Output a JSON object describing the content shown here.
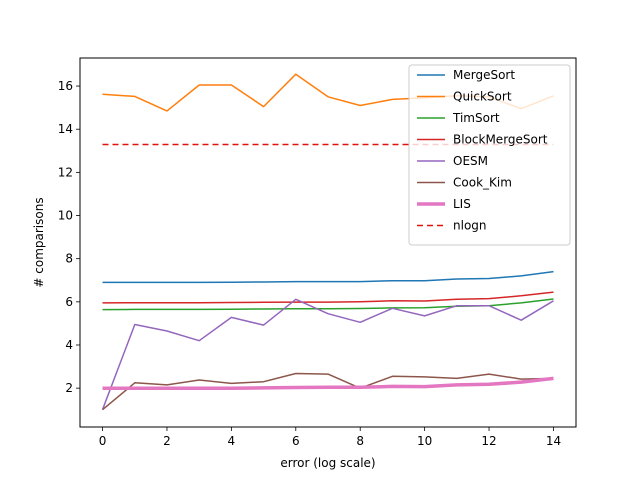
{
  "chart_data": {
    "type": "line",
    "xlabel": "error (log scale)",
    "ylabel": "# comparisons",
    "xlim": [
      -0.7,
      14.7
    ],
    "ylim": [
      0.2,
      17.3
    ],
    "xticks": [
      0,
      2,
      4,
      6,
      8,
      10,
      12,
      14
    ],
    "yticks": [
      2,
      4,
      6,
      8,
      10,
      12,
      14,
      16
    ],
    "grid": false,
    "legend_position": "top-right",
    "x": [
      0,
      1,
      2,
      3,
      4,
      5,
      6,
      7,
      8,
      9,
      10,
      11,
      12,
      13,
      14
    ],
    "series": [
      {
        "name": "MergeSort",
        "color": "#1f77b4",
        "style": "solid",
        "width": 1.5,
        "values": [
          6.9,
          6.9,
          6.9,
          6.9,
          6.91,
          6.92,
          6.94,
          6.94,
          6.94,
          6.98,
          6.98,
          7.06,
          7.08,
          7.2,
          7.4
        ]
      },
      {
        "name": "QuickSort",
        "color": "#ff7f0e",
        "style": "solid",
        "width": 1.5,
        "values": [
          15.62,
          15.52,
          14.85,
          16.05,
          16.05,
          15.05,
          16.55,
          15.5,
          15.1,
          15.38,
          15.45,
          15.55,
          15.5,
          14.95,
          15.55
        ]
      },
      {
        "name": "TimSort",
        "color": "#2ca02c",
        "style": "solid",
        "width": 1.5,
        "values": [
          5.64,
          5.65,
          5.65,
          5.65,
          5.66,
          5.67,
          5.68,
          5.68,
          5.69,
          5.72,
          5.73,
          5.8,
          5.82,
          5.95,
          6.13
        ]
      },
      {
        "name": "BlockMergeSort",
        "color": "#d62728",
        "style": "solid",
        "width": 1.5,
        "values": [
          5.95,
          5.96,
          5.96,
          5.96,
          5.97,
          5.98,
          5.99,
          5.99,
          6.0,
          6.05,
          6.04,
          6.12,
          6.15,
          6.28,
          6.45
        ]
      },
      {
        "name": "OESM",
        "color": "#9467bd",
        "style": "solid",
        "width": 1.5,
        "values": [
          1.0,
          4.95,
          4.65,
          4.2,
          5.28,
          4.92,
          6.12,
          5.45,
          5.05,
          5.7,
          5.35,
          5.82,
          5.82,
          5.15,
          6.05
        ]
      },
      {
        "name": "Cook_Kim",
        "color": "#8c564b",
        "style": "solid",
        "width": 1.5,
        "values": [
          1.0,
          2.25,
          2.15,
          2.38,
          2.22,
          2.3,
          2.68,
          2.65,
          2.0,
          2.55,
          2.52,
          2.45,
          2.65,
          2.42,
          2.45
        ]
      },
      {
        "name": "LIS",
        "color": "#e377c2",
        "style": "solid",
        "width": 3.5,
        "values": [
          2.0,
          2.0,
          2.0,
          2.0,
          2.0,
          2.01,
          2.03,
          2.04,
          2.04,
          2.08,
          2.07,
          2.15,
          2.18,
          2.28,
          2.45
        ]
      },
      {
        "name": "nlogn",
        "color": "#e0120e",
        "style": "dashed",
        "width": 1.5,
        "values": [
          13.29,
          13.29,
          13.29,
          13.29,
          13.29,
          13.29,
          13.29,
          13.29,
          13.29,
          13.29,
          13.29,
          13.29,
          13.29,
          13.29,
          13.29
        ]
      }
    ]
  }
}
